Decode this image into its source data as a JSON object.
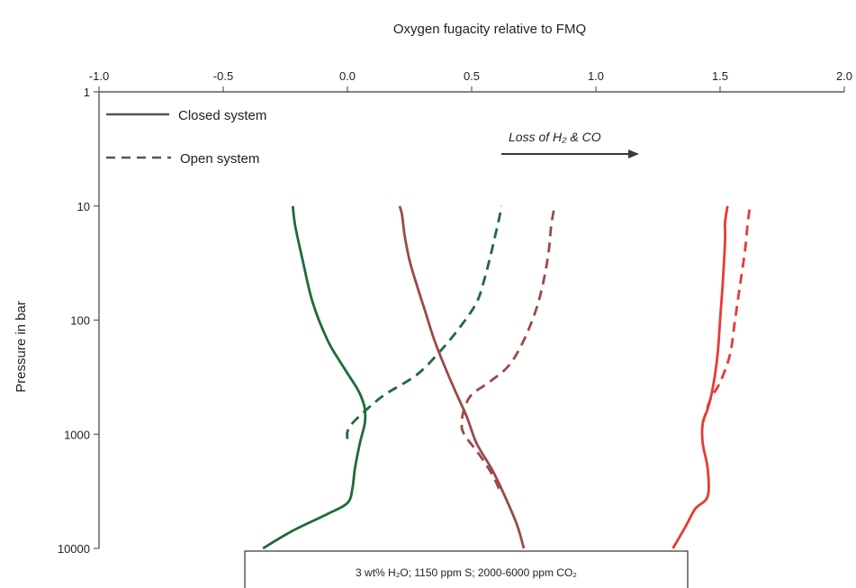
{
  "chart_data": {
    "type": "line",
    "title": "Oxygen fugacity relative to FMQ",
    "xlabel": "Oxygen fugacity relative to FMQ",
    "ylabel": "Pressure in bar",
    "xlim": [
      -1.0,
      2.0
    ],
    "ylim": [
      1,
      10000
    ],
    "y_scale": "log",
    "y_inverted": true,
    "x_axis_position": "top",
    "x_ticks": [
      "-1.0",
      "-0.5",
      "0.0",
      "0.5",
      "1.0",
      "1.5",
      "2.0"
    ],
    "y_ticks": [
      "1",
      "10",
      "100",
      "1000",
      "10000"
    ],
    "grid": false,
    "legend_position": "top-left",
    "legend": [
      {
        "label": "Closed system",
        "style": "solid"
      },
      {
        "label": "Open system",
        "style": "dashed"
      }
    ],
    "annotations": [
      {
        "text": "Loss of H₂ & CO",
        "kind": "arrow-right"
      }
    ],
    "caption": "3 wt% H₂O; 1150 ppm S; 2000-6000 ppm CO₂",
    "series": [
      {
        "color": "#1f6b3a",
        "style": "solid",
        "points": [
          [
            -0.34,
            10000
          ],
          [
            -0.22,
            7000
          ],
          [
            -0.08,
            5000
          ],
          [
            0.0,
            4000
          ],
          [
            0.02,
            3000
          ],
          [
            0.03,
            2000
          ],
          [
            0.05,
            1200
          ],
          [
            0.07,
            800
          ],
          [
            0.07,
            600
          ],
          [
            0.06,
            500
          ],
          [
            0.04,
            400
          ],
          [
            -0.02,
            250
          ],
          [
            -0.08,
            150
          ],
          [
            -0.14,
            70
          ],
          [
            -0.18,
            30
          ],
          [
            -0.21,
            15
          ],
          [
            -0.22,
            10
          ]
        ]
      },
      {
        "color": "#1f6b3a",
        "style": "dashed",
        "points": [
          [
            0.0,
            1100
          ],
          [
            0.0,
            950
          ],
          [
            0.02,
            800
          ],
          [
            0.08,
            600
          ],
          [
            0.15,
            450
          ],
          [
            0.28,
            300
          ],
          [
            0.38,
            180
          ],
          [
            0.46,
            110
          ],
          [
            0.52,
            70
          ],
          [
            0.55,
            45
          ],
          [
            0.58,
            25
          ],
          [
            0.61,
            13
          ],
          [
            0.62,
            10
          ]
        ]
      },
      {
        "color": "#9a4a48",
        "style": "solid",
        "points": [
          [
            0.71,
            10000
          ],
          [
            0.68,
            6000
          ],
          [
            0.62,
            3000
          ],
          [
            0.58,
            2000
          ],
          [
            0.52,
            1200
          ],
          [
            0.48,
            700
          ],
          [
            0.43,
            400
          ],
          [
            0.39,
            250
          ],
          [
            0.35,
            150
          ],
          [
            0.31,
            80
          ],
          [
            0.28,
            50
          ],
          [
            0.25,
            30
          ],
          [
            0.23,
            18
          ],
          [
            0.22,
            12
          ],
          [
            0.21,
            10
          ]
        ]
      },
      {
        "color": "#9a4a48",
        "style": "dashed",
        "points": [
          [
            0.61,
            3000
          ],
          [
            0.58,
            2200
          ],
          [
            0.53,
            1500
          ],
          [
            0.47,
            1000
          ],
          [
            0.46,
            800
          ],
          [
            0.47,
            600
          ],
          [
            0.5,
            450
          ],
          [
            0.57,
            350
          ],
          [
            0.65,
            250
          ],
          [
            0.71,
            150
          ],
          [
            0.76,
            80
          ],
          [
            0.79,
            45
          ],
          [
            0.81,
            25
          ],
          [
            0.82,
            15
          ],
          [
            0.83,
            11
          ],
          [
            0.83,
            10
          ]
        ]
      },
      {
        "color": "#e83a34",
        "style": "solid",
        "points": [
          [
            1.31,
            10000
          ],
          [
            1.36,
            6500
          ],
          [
            1.4,
            4500
          ],
          [
            1.45,
            3500
          ],
          [
            1.45,
            2000
          ],
          [
            1.43,
            1200
          ],
          [
            1.43,
            800
          ],
          [
            1.45,
            600
          ],
          [
            1.47,
            400
          ],
          [
            1.49,
            200
          ],
          [
            1.5,
            100
          ],
          [
            1.51,
            50
          ],
          [
            1.52,
            20
          ],
          [
            1.52,
            14
          ],
          [
            1.53,
            10
          ]
        ]
      },
      {
        "color": "#e83a34",
        "style": "dashed",
        "points": [
          [
            1.43,
            800
          ],
          [
            1.46,
            500
          ],
          [
            1.5,
            350
          ],
          [
            1.54,
            200
          ],
          [
            1.56,
            100
          ],
          [
            1.58,
            50
          ],
          [
            1.6,
            25
          ],
          [
            1.61,
            15
          ],
          [
            1.62,
            10
          ]
        ]
      }
    ]
  }
}
